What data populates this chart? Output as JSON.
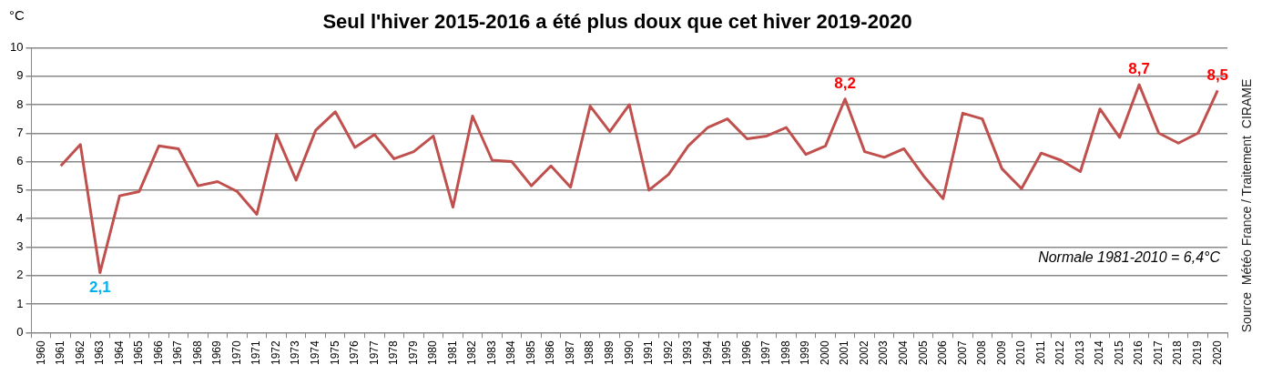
{
  "chart_data": {
    "type": "line",
    "title": "Seul l'hiver 2015-2016 a été plus doux que cet hiver 2019-2020",
    "ylabel": "°C",
    "categories": [
      "1960",
      "1961",
      "1962",
      "1963",
      "1964",
      "1965",
      "1966",
      "1967",
      "1968",
      "1969",
      "1970",
      "1971",
      "1972",
      "1973",
      "1974",
      "1975",
      "1976",
      "1977",
      "1978",
      "1979",
      "1980",
      "1981",
      "1982",
      "1983",
      "1984",
      "1985",
      "1986",
      "1987",
      "1988",
      "1989",
      "1990",
      "1991",
      "1992",
      "1993",
      "1994",
      "1995",
      "1996",
      "1997",
      "1998",
      "1999",
      "2000",
      "2001",
      "2002",
      "2003",
      "2004",
      "2005",
      "2006",
      "2007",
      "2008",
      "2009",
      "2010",
      "2011",
      "2012",
      "2013",
      "2014",
      "2015",
      "2016",
      "2017",
      "2018",
      "2019",
      "2020"
    ],
    "series": [
      {
        "color": "#c0504d",
        "values": [
          null,
          5.85,
          6.6,
          2.1,
          4.8,
          4.95,
          6.55,
          6.45,
          5.15,
          5.3,
          4.95,
          4.15,
          6.95,
          5.35,
          7.1,
          7.75,
          6.5,
          6.95,
          6.1,
          6.35,
          6.9,
          4.4,
          7.6,
          6.05,
          6.0,
          5.15,
          5.85,
          5.1,
          7.95,
          7.05,
          8.0,
          5.0,
          5.55,
          6.55,
          7.2,
          7.5,
          6.8,
          6.9,
          7.2,
          6.25,
          6.55,
          8.2,
          6.35,
          6.15,
          6.45,
          5.5,
          4.7,
          7.7,
          7.5,
          5.75,
          5.05,
          6.3,
          6.05,
          5.65,
          7.85,
          6.85,
          8.7,
          7.0,
          6.65,
          7.0,
          8.5
        ],
        "value_labels": [
          null,
          null,
          null,
          "2,1",
          null,
          null,
          null,
          null,
          null,
          null,
          null,
          null,
          null,
          null,
          null,
          null,
          null,
          null,
          null,
          null,
          null,
          null,
          null,
          null,
          null,
          null,
          null,
          null,
          null,
          null,
          null,
          null,
          null,
          null,
          null,
          null,
          null,
          null,
          null,
          null,
          null,
          "8,2",
          null,
          null,
          null,
          null,
          null,
          null,
          null,
          null,
          null,
          null,
          null,
          null,
          null,
          null,
          "8,7",
          null,
          null,
          null,
          "8,5"
        ]
      }
    ],
    "ylim": [
      0,
      10
    ],
    "yticks": [
      0,
      1,
      2,
      3,
      4,
      5,
      6,
      7,
      8,
      9,
      10
    ],
    "grid": "y",
    "marker": "none",
    "line_style": "solid",
    "legend": false,
    "annotations": [
      "Normale 1981-2010 = 6,4°C",
      "Source  Météo France / Traitement  CIRAME"
    ]
  }
}
